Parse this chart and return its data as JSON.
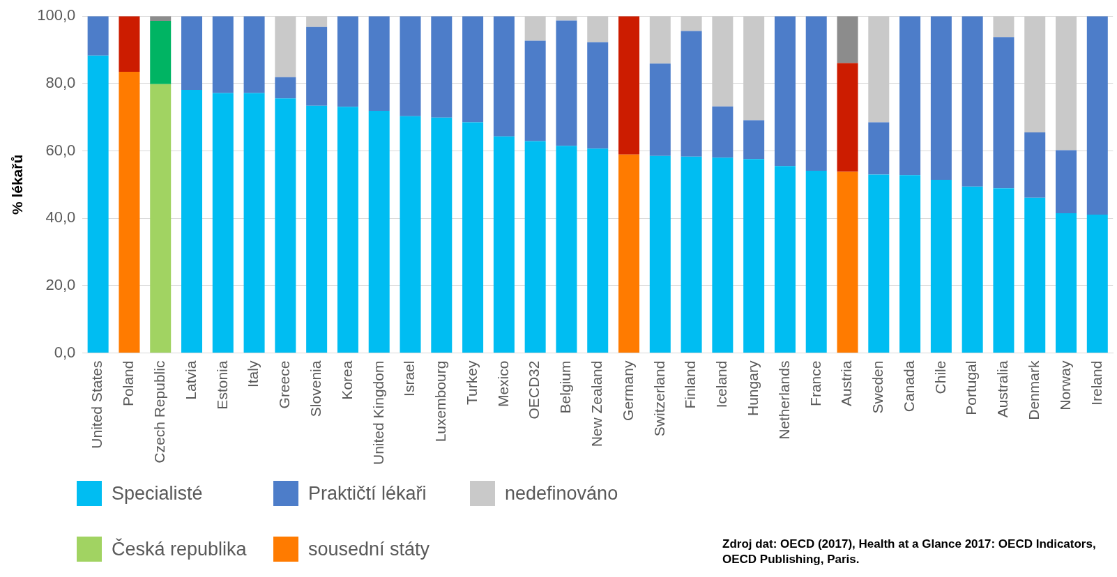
{
  "chart_data": {
    "type": "bar",
    "stacked": true,
    "ylabel": "% lékařů",
    "categories": [
      "United States",
      "Poland",
      "Czech Republic",
      "Latvia",
      "Estonia",
      "Italy",
      "Greece",
      "Slovenia",
      "Korea",
      "United Kingdom",
      "Israel",
      "Luxembourg",
      "Turkey",
      "Mexico",
      "OECD32",
      "Belgium",
      "New Zealand",
      "Germany",
      "Switzerland",
      "Finland",
      "Iceland",
      "Hungary",
      "Netherlands",
      "France",
      "Austria",
      "Sweden",
      "Canada",
      "Chile",
      "Portugal",
      "Australia",
      "Denmark",
      "Norway",
      "Ireland"
    ],
    "series": [
      {
        "name": "Specialisté",
        "color": "#00bdf2",
        "colors": [
          "#00bdf2",
          "#ff7b00",
          "#a1d362",
          "#00bdf2",
          "#00bdf2",
          "#00bdf2",
          "#00bdf2",
          "#00bdf2",
          "#00bdf2",
          "#00bdf2",
          "#00bdf2",
          "#00bdf2",
          "#00bdf2",
          "#00bdf2",
          "#00bdf2",
          "#00bdf2",
          "#00bdf2",
          "#ff7b00",
          "#00bdf2",
          "#00bdf2",
          "#00bdf2",
          "#00bdf2",
          "#00bdf2",
          "#00bdf2",
          "#ff7b00",
          "#00bdf2",
          "#00bdf2",
          "#00bdf2",
          "#00bdf2",
          "#00bdf2",
          "#00bdf2",
          "#00bdf2",
          "#00bdf2"
        ],
        "values": [
          88.3,
          83.5,
          79.8,
          78.1,
          77.2,
          77.2,
          75.6,
          73.4,
          73.1,
          71.9,
          70.3,
          69.9,
          68.5,
          64.3,
          62.9,
          61.5,
          60.7,
          58.9,
          58.5,
          58.3,
          58.0,
          57.6,
          55.5,
          54.1,
          53.8,
          53.0,
          52.8,
          51.4,
          49.4,
          48.9,
          46.1,
          41.5,
          41.1
        ]
      },
      {
        "name": "Praktičtí lékaři",
        "color": "#4d7dc9",
        "colors": [
          "#4d7dc9",
          "#cc1c00",
          "#00b463",
          "#4d7dc9",
          "#4d7dc9",
          "#4d7dc9",
          "#4d7dc9",
          "#4d7dc9",
          "#4d7dc9",
          "#4d7dc9",
          "#4d7dc9",
          "#4d7dc9",
          "#4d7dc9",
          "#4d7dc9",
          "#4d7dc9",
          "#4d7dc9",
          "#4d7dc9",
          "#cc1c00",
          "#4d7dc9",
          "#4d7dc9",
          "#4d7dc9",
          "#4d7dc9",
          "#4d7dc9",
          "#4d7dc9",
          "#cc1c00",
          "#4d7dc9",
          "#4d7dc9",
          "#4d7dc9",
          "#4d7dc9",
          "#4d7dc9",
          "#4d7dc9",
          "#4d7dc9",
          "#4d7dc9"
        ],
        "values": [
          11.7,
          16.5,
          18.8,
          21.9,
          22.8,
          22.8,
          6.3,
          23.4,
          26.9,
          28.1,
          29.7,
          30.1,
          31.5,
          35.7,
          29.8,
          37.2,
          31.6,
          41.1,
          27.4,
          37.3,
          15.2,
          11.5,
          44.5,
          45.9,
          32.3,
          15.5,
          47.2,
          48.6,
          50.6,
          44.9,
          19.4,
          18.7,
          58.9
        ]
      },
      {
        "name": "nedefinováno",
        "color": "#c9c9c9",
        "colors": [
          "#c9c9c9",
          "#c9c9c9",
          "#8c8c8c",
          "#c9c9c9",
          "#c9c9c9",
          "#c9c9c9",
          "#c9c9c9",
          "#c9c9c9",
          "#c9c9c9",
          "#c9c9c9",
          "#c9c9c9",
          "#c9c9c9",
          "#c9c9c9",
          "#c9c9c9",
          "#c9c9c9",
          "#c9c9c9",
          "#c9c9c9",
          "#c9c9c9",
          "#c9c9c9",
          "#c9c9c9",
          "#c9c9c9",
          "#c9c9c9",
          "#c9c9c9",
          "#c9c9c9",
          "#8c8c8c",
          "#c9c9c9",
          "#c9c9c9",
          "#c9c9c9",
          "#c9c9c9",
          "#c9c9c9",
          "#c9c9c9",
          "#c9c9c9",
          "#c9c9c9"
        ],
        "values": [
          0,
          0,
          1.4,
          0,
          0,
          0,
          18.1,
          3.2,
          0,
          0,
          0,
          0,
          0,
          0,
          7.3,
          1.3,
          7.7,
          0,
          14.1,
          4.4,
          26.8,
          30.9,
          0,
          0,
          13.9,
          31.5,
          0,
          0,
          0,
          6.2,
          34.5,
          39.8,
          0
        ]
      },
      {
        "name": "Česká republika",
        "color": "#a1d362",
        "values": [
          null,
          null,
          null,
          null,
          null,
          null,
          null,
          null,
          null,
          null,
          null,
          null,
          null,
          null,
          null,
          null,
          null,
          null,
          null,
          null,
          null,
          null,
          null,
          null,
          null,
          null,
          null,
          null,
          null,
          null,
          null,
          null,
          null
        ]
      },
      {
        "name": "sousední státy",
        "color": "#ff7b00",
        "values": [
          null,
          null,
          null,
          null,
          null,
          null,
          null,
          null,
          null,
          null,
          null,
          null,
          null,
          null,
          null,
          null,
          null,
          null,
          null,
          null,
          null,
          null,
          null,
          null,
          null,
          null,
          null,
          null,
          null,
          null,
          null,
          null,
          null
        ]
      }
    ],
    "ylim": [
      0,
      100
    ],
    "yticks": [
      {
        "value": 0,
        "label": "0,0"
      },
      {
        "value": 20,
        "label": "20,0"
      },
      {
        "value": 40,
        "label": "40,0"
      },
      {
        "value": 60,
        "label": "60,0"
      },
      {
        "value": 80,
        "label": "80,0"
      },
      {
        "value": 100,
        "label": "100,0"
      }
    ],
    "grid": "y",
    "legend": "bottom left",
    "annotations": [
      "Zdroj dat: OECD (2017), Health at a Glance 2017: OECD Indicators, OECD Publishing, Paris."
    ]
  }
}
